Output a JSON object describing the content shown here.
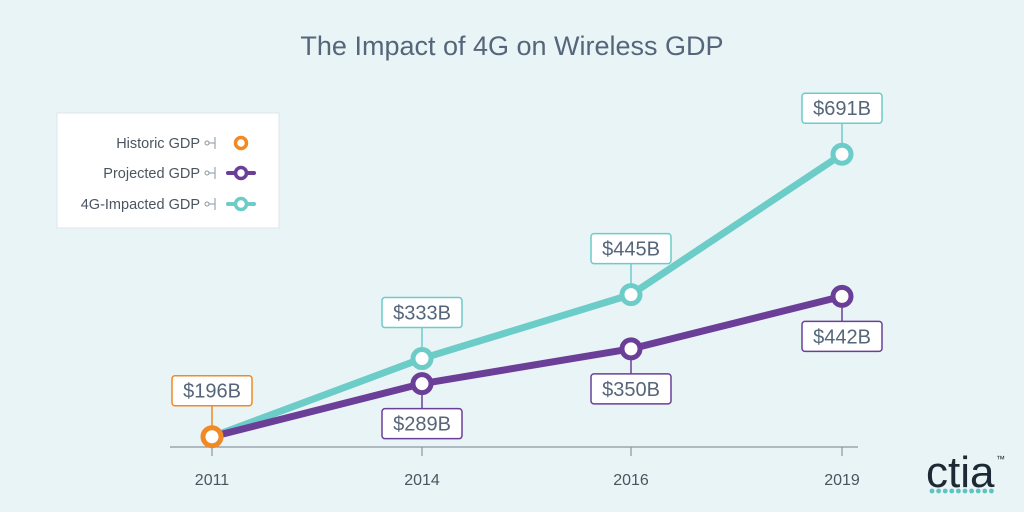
{
  "chart_data": {
    "type": "line",
    "title": "The Impact of 4G on Wireless GDP",
    "xlabel": "",
    "ylabel": "",
    "categories": [
      "2011",
      "2014",
      "2016",
      "2019"
    ],
    "series": [
      {
        "name": "Historic GDP",
        "color": "#f08a24",
        "values": [
          196,
          null,
          null,
          null
        ],
        "labels": [
          "$196B",
          null,
          null,
          null
        ]
      },
      {
        "name": "Projected GDP",
        "color": "#6b3f98",
        "values": [
          196,
          289,
          350,
          442
        ],
        "labels": [
          null,
          "$289B",
          "$350B",
          "$442B"
        ]
      },
      {
        "name": "4G-Impacted GDP",
        "color": "#6cccc8",
        "values": [
          196,
          333,
          445,
          691
        ],
        "labels": [
          null,
          "$333B",
          "$445B",
          "$691B"
        ]
      }
    ],
    "ylim": [
      0,
      800
    ],
    "grid": false,
    "legend_position": "top-left"
  },
  "logo": {
    "text": "ctia",
    "trademark": "™",
    "dot_color": "#5fc3bf"
  }
}
